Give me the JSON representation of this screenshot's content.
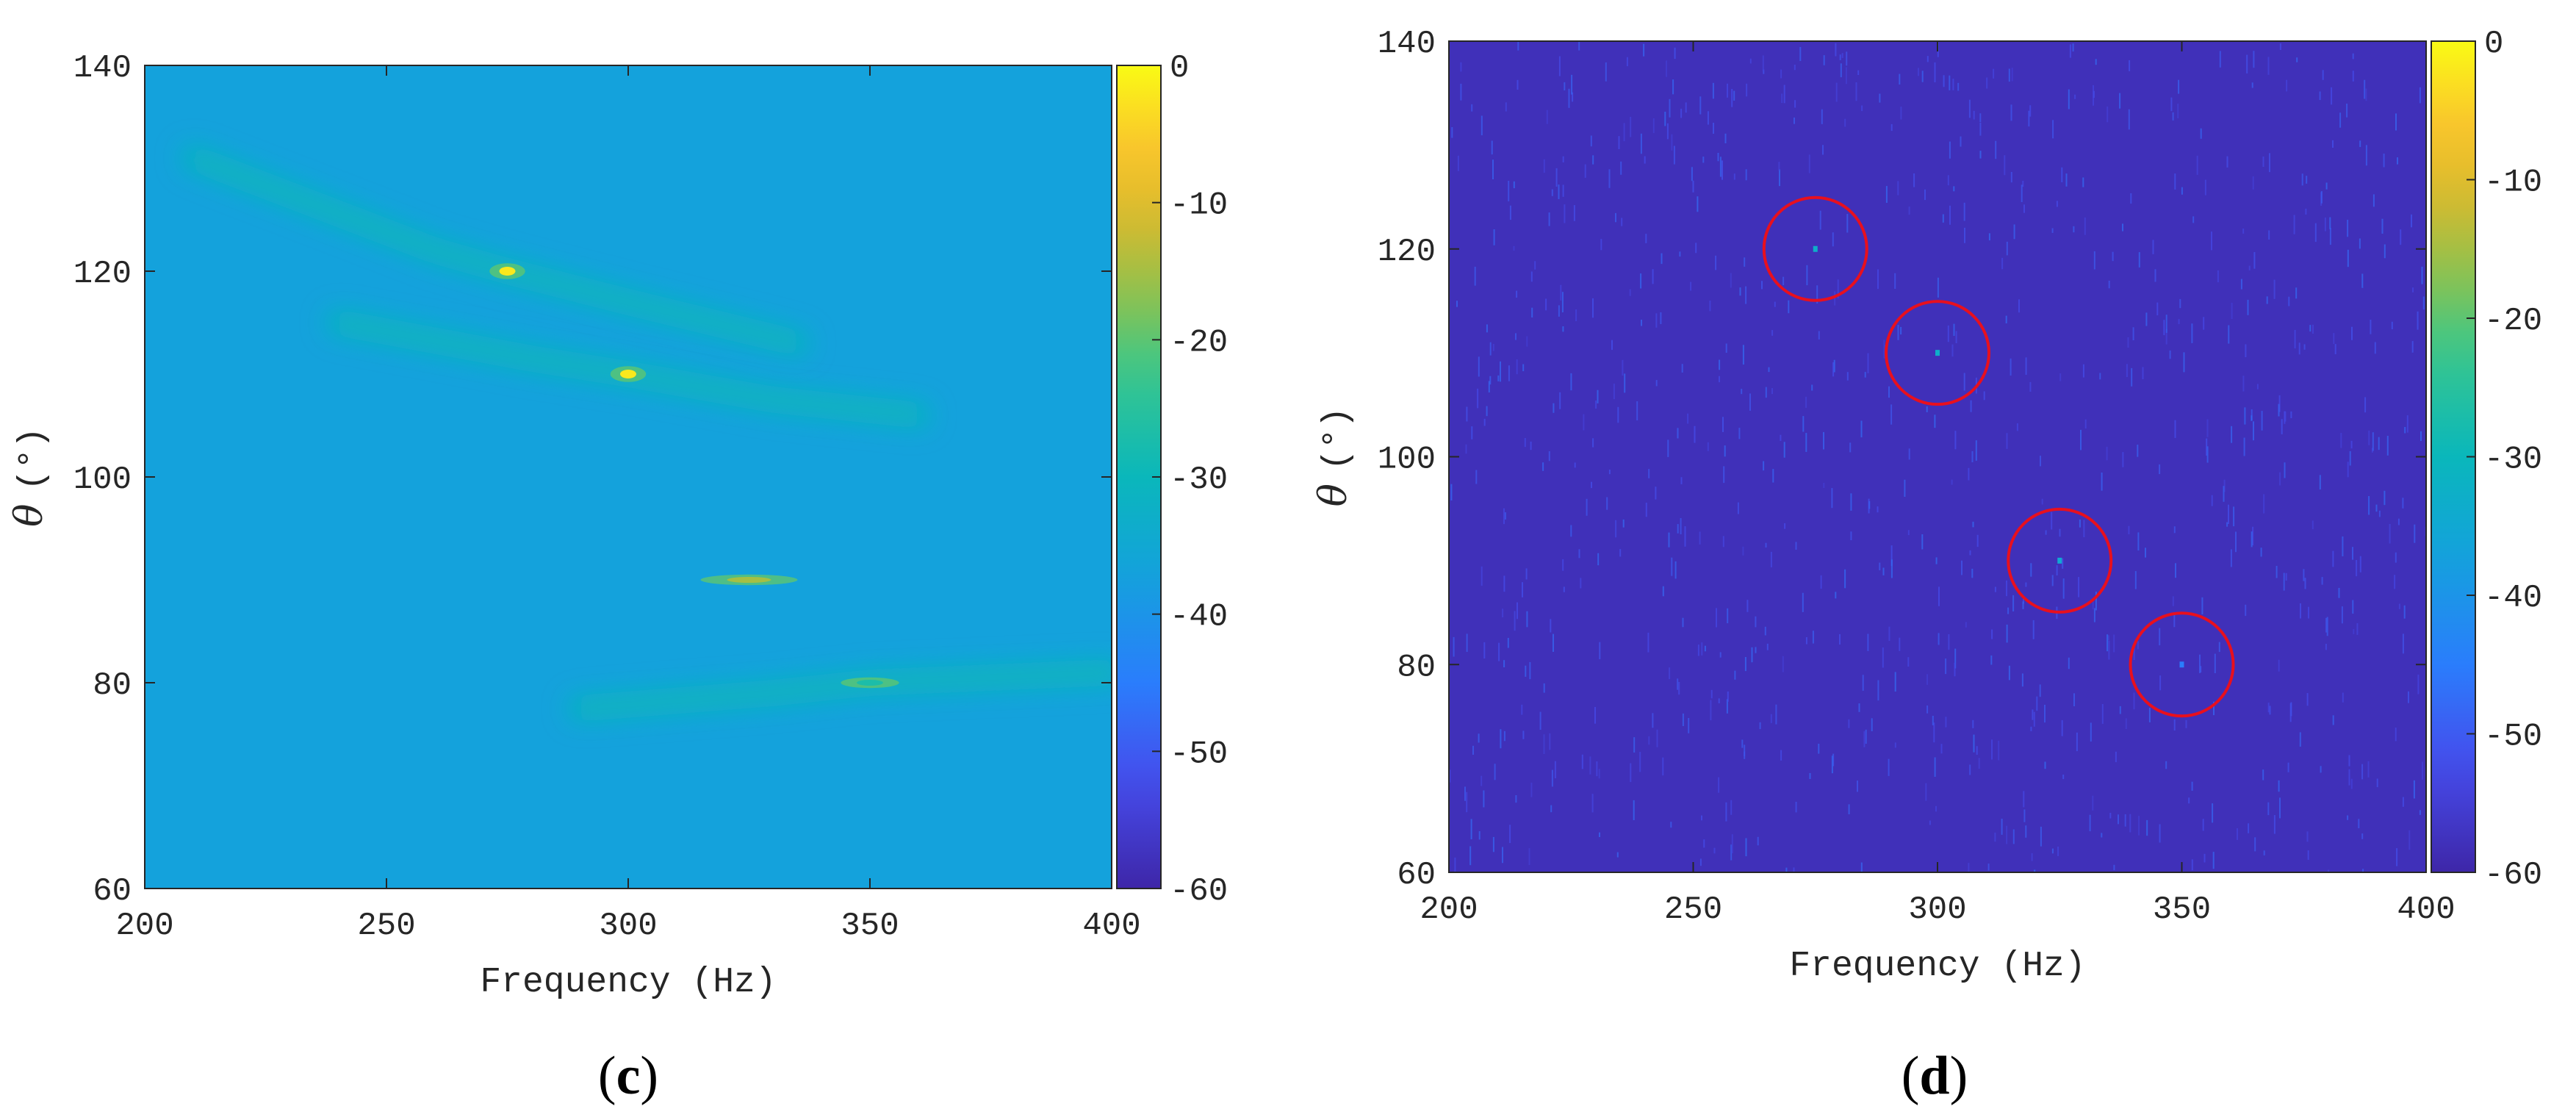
{
  "chart_data": [
    {
      "type": "heatmap",
      "panel_label": {
        "open": "(",
        "letter": "c",
        "close": ")"
      },
      "xlabel": "Frequency (Hz)",
      "ylabel": {
        "symbol": "θ",
        "unit": "(°)"
      },
      "xlim": [
        200,
        400
      ],
      "ylim": [
        60,
        140
      ],
      "x_ticks": [
        200,
        250,
        300,
        350,
        400
      ],
      "y_ticks": [
        60,
        80,
        100,
        120,
        140
      ],
      "colorbar": {
        "min": -60,
        "max": 0,
        "ticks": [
          0,
          -10,
          -20,
          -30,
          -40,
          -50,
          -60
        ]
      },
      "colormap": "parula",
      "background_db": -37,
      "ridges": [
        {
          "x": [
            210,
            260,
            275,
            300,
            335
          ],
          "y": [
            131,
            122,
            120,
            117,
            113
          ],
          "peak_x": 275,
          "peak_y": 120,
          "peak_db": -2
        },
        {
          "x": [
            240,
            280,
            300,
            330,
            360
          ],
          "y": [
            115,
            111.5,
            110,
            107.5,
            106
          ],
          "peak_x": 300,
          "peak_y": 110,
          "peak_db": -2
        },
        {
          "x": [
            265,
            300,
            325,
            355,
            385
          ],
          "y": [
            90,
            90,
            90,
            90,
            90
          ],
          "peak_x": 325,
          "peak_y": 90,
          "peak_db": -15
        },
        {
          "x": [
            290,
            330,
            350,
            375,
            400
          ],
          "y": [
            77.5,
            79,
            80,
            80.5,
            81
          ],
          "peak_x": 350,
          "peak_y": 80,
          "peak_db": -27
        }
      ]
    },
    {
      "type": "heatmap",
      "panel_label": {
        "open": "(",
        "letter": "d",
        "close": ")"
      },
      "xlabel": "Frequency (Hz)",
      "ylabel": {
        "symbol": "θ",
        "unit": "(°)"
      },
      "xlim": [
        200,
        400
      ],
      "ylim": [
        60,
        140
      ],
      "x_ticks": [
        200,
        250,
        300,
        350,
        400
      ],
      "y_ticks": [
        60,
        80,
        100,
        120,
        140
      ],
      "colorbar": {
        "min": -60,
        "max": 0,
        "ticks": [
          0,
          -10,
          -20,
          -30,
          -40,
          -50,
          -60
        ]
      },
      "colormap": "parula",
      "background_db": -58,
      "peaks": [
        {
          "x": 275,
          "y": 120,
          "db": -33
        },
        {
          "x": 300,
          "y": 110,
          "db": -33
        },
        {
          "x": 325,
          "y": 90,
          "db": -35
        },
        {
          "x": 350,
          "y": 80,
          "db": -45
        }
      ],
      "highlight_color": "#e8101e"
    }
  ]
}
